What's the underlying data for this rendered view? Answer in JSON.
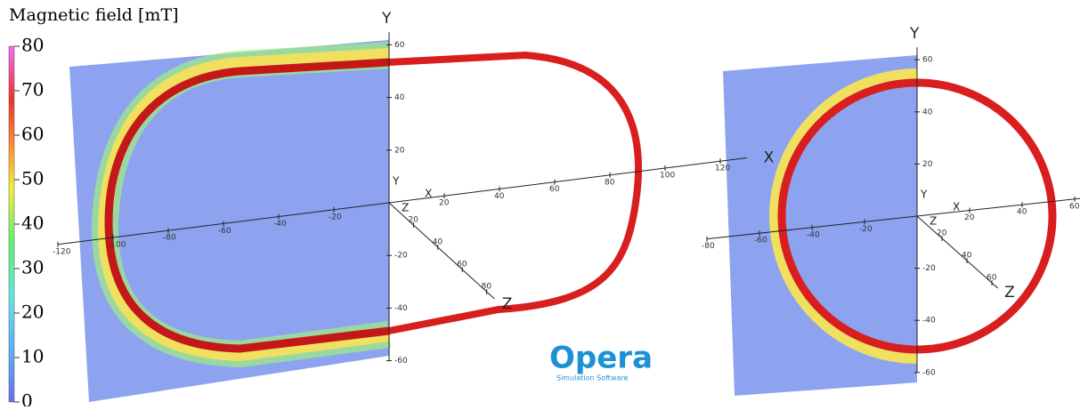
{
  "colorbar": {
    "title": "Magnetic field [mT]",
    "lim": [
      0,
      80
    ],
    "ticks": [
      0,
      10,
      20,
      30,
      40,
      50,
      60,
      70,
      80
    ]
  },
  "panels": [
    {
      "x_ticks": [
        -120,
        -100,
        -80,
        -60,
        -40,
        -20,
        20,
        40,
        60,
        80,
        100,
        120
      ],
      "y_ticks": [
        -60,
        -40,
        -20,
        20,
        40,
        60
      ],
      "z_ticks": [
        20,
        40,
        60,
        80
      ],
      "axis_labels": {
        "x": "X",
        "y": "Y",
        "z": "Z"
      },
      "origin_labels": {
        "x": "X",
        "y": "Y",
        "z": "Z"
      }
    },
    {
      "x_ticks": [
        -80,
        -60,
        -40,
        -20,
        20,
        40,
        60
      ],
      "y_ticks": [
        -60,
        -40,
        -20,
        20,
        40,
        60
      ],
      "z_ticks": [
        20,
        40,
        60
      ],
      "axis_labels": {
        "y": "Y",
        "z": "Z"
      },
      "origin_labels": {
        "x": "X",
        "y": "Y",
        "z": "Z"
      }
    }
  ],
  "logo": {
    "name": "Opera",
    "tagline": "Simulation Software"
  }
}
